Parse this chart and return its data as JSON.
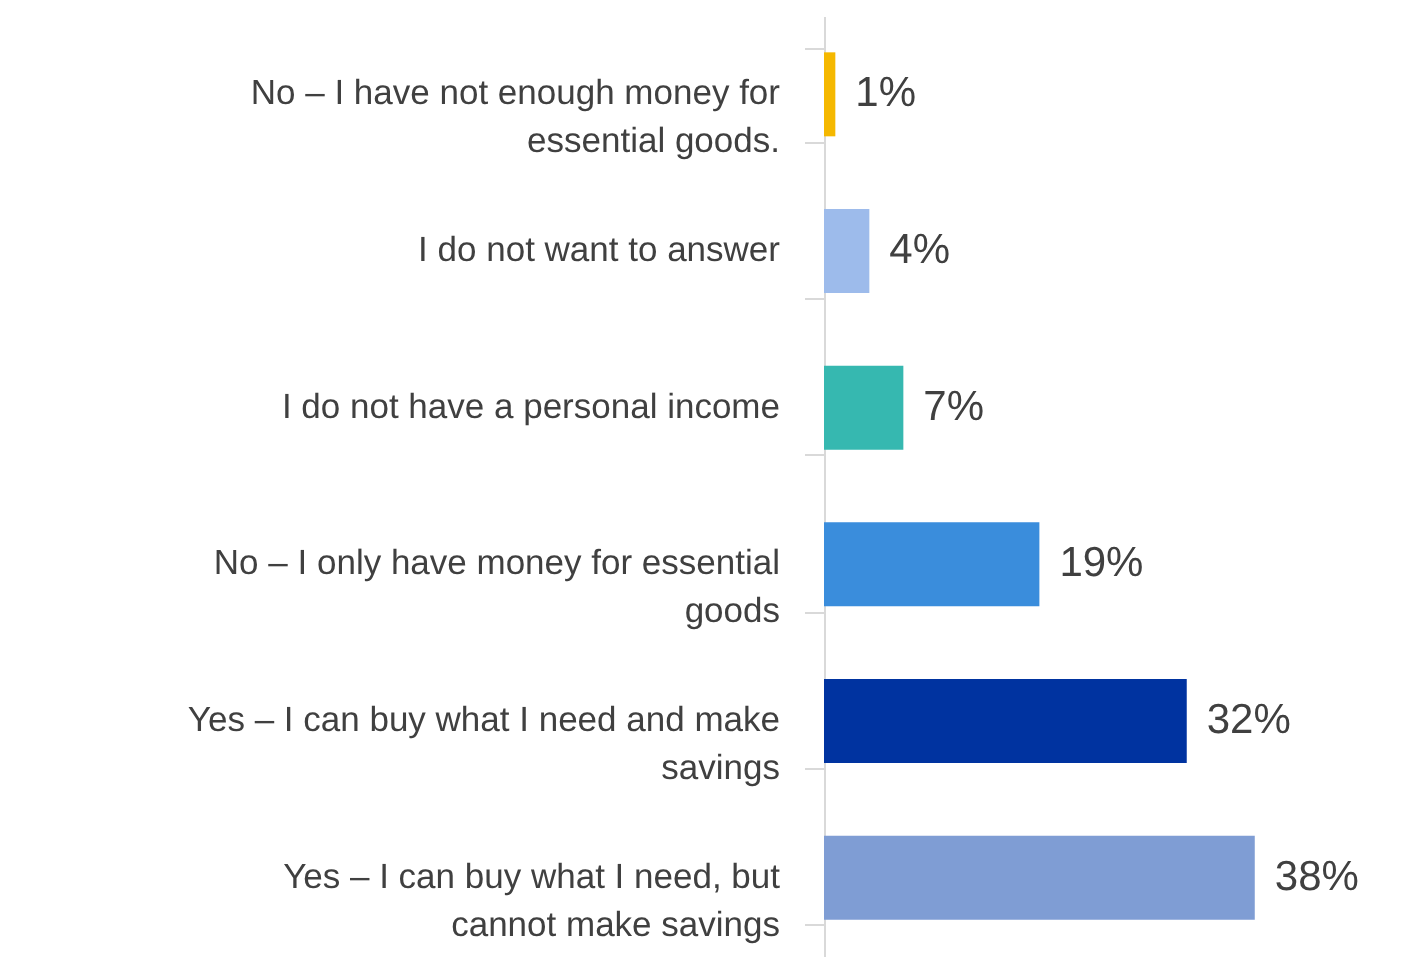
{
  "chart_data": {
    "type": "bar",
    "orientation": "horizontal",
    "categories": [
      "No – I have not enough money for essential goods.",
      "I do not want to answer",
      "I do not have a personal income",
      "No – I only have money for essential goods",
      "Yes – I can buy what I need and make savings",
      "Yes – I can buy what I need, but cannot make savings"
    ],
    "values": [
      1,
      4,
      7,
      19,
      32,
      38
    ],
    "value_labels": [
      "1%",
      "4%",
      "7%",
      "19%",
      "32%",
      "38%"
    ],
    "colors": [
      "#f5b800",
      "#9dbbeb",
      "#36b8b0",
      "#3a8ddc",
      "#0033a0",
      "#7f9dd4"
    ],
    "grid": false
  }
}
